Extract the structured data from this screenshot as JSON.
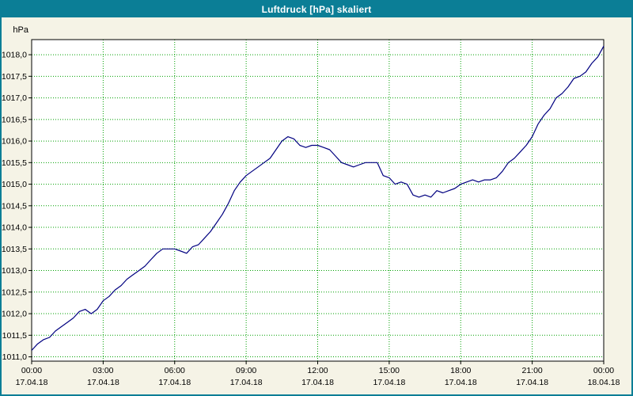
{
  "window": {
    "title": "Luftdruck [hPa] skaliert"
  },
  "colors": {
    "accent_teal": "#0b7e96",
    "background_cream": "#f5f3e6",
    "plot_background": "#ffffff",
    "grid_green": "#00a000",
    "line_navy": "#000080",
    "axis_black": "#000000"
  },
  "chart_data": {
    "type": "line",
    "title": "Luftdruck [hPa] skaliert",
    "ylabel": "hPa",
    "xlabel": "",
    "grid": true,
    "legend": "none",
    "ylim": [
      1010.9,
      1018.35
    ],
    "yticks_from": 1011.0,
    "yticks_to": 1018.0,
    "ytick_step": 0.5,
    "ytick_decimal_separator": ",",
    "xlim": [
      0,
      24
    ],
    "xticks": [
      {
        "h": 0,
        "time": "00:00",
        "date": "17.04.18"
      },
      {
        "h": 3,
        "time": "03:00",
        "date": "17.04.18"
      },
      {
        "h": 6,
        "time": "06:00",
        "date": "17.04.18"
      },
      {
        "h": 9,
        "time": "09:00",
        "date": "17.04.18"
      },
      {
        "h": 12,
        "time": "12:00",
        "date": "17.04.18"
      },
      {
        "h": 15,
        "time": "15:00",
        "date": "17.04.18"
      },
      {
        "h": 18,
        "time": "18:00",
        "date": "17.04.18"
      },
      {
        "h": 21,
        "time": "21:00",
        "date": "17.04.18"
      },
      {
        "h": 24,
        "time": "00:00",
        "date": "18.04.18"
      }
    ],
    "x": [
      0,
      0.25,
      0.5,
      0.75,
      1,
      1.25,
      1.5,
      1.75,
      2,
      2.25,
      2.5,
      2.75,
      3,
      3.25,
      3.5,
      3.75,
      4,
      4.25,
      4.5,
      4.75,
      5,
      5.25,
      5.5,
      5.75,
      6,
      6.25,
      6.5,
      6.75,
      7,
      7.25,
      7.5,
      7.75,
      8,
      8.25,
      8.5,
      8.75,
      9,
      9.25,
      9.5,
      9.75,
      10,
      10.25,
      10.5,
      10.75,
      11,
      11.25,
      11.5,
      11.75,
      12,
      12.25,
      12.5,
      12.75,
      13,
      13.25,
      13.5,
      13.75,
      14,
      14.25,
      14.5,
      14.75,
      15,
      15.25,
      15.5,
      15.75,
      16,
      16.25,
      16.5,
      16.75,
      17,
      17.25,
      17.5,
      17.75,
      18,
      18.25,
      18.5,
      18.75,
      19,
      19.25,
      19.5,
      19.75,
      20,
      20.25,
      20.5,
      20.75,
      21,
      21.25,
      21.5,
      21.75,
      22,
      22.25,
      22.5,
      22.75,
      23,
      23.25,
      23.5,
      23.75,
      24
    ],
    "y": [
      1011.15,
      1011.3,
      1011.4,
      1011.45,
      1011.6,
      1011.7,
      1011.8,
      1011.9,
      1012.05,
      1012.1,
      1012.0,
      1012.1,
      1012.3,
      1012.4,
      1012.55,
      1012.65,
      1012.8,
      1012.9,
      1013.0,
      1013.1,
      1013.25,
      1013.4,
      1013.5,
      1013.5,
      1013.5,
      1013.45,
      1013.4,
      1013.55,
      1013.6,
      1013.75,
      1013.9,
      1014.1,
      1014.3,
      1014.55,
      1014.85,
      1015.05,
      1015.2,
      1015.3,
      1015.4,
      1015.5,
      1015.6,
      1015.8,
      1016.0,
      1016.1,
      1016.05,
      1015.9,
      1015.85,
      1015.9,
      1015.9,
      1015.85,
      1015.8,
      1015.65,
      1015.5,
      1015.45,
      1015.4,
      1015.45,
      1015.5,
      1015.5,
      1015.5,
      1015.2,
      1015.15,
      1015.0,
      1015.05,
      1015.0,
      1014.75,
      1014.7,
      1014.75,
      1014.7,
      1014.85,
      1014.8,
      1014.85,
      1014.9,
      1015.0,
      1015.05,
      1015.1,
      1015.05,
      1015.1,
      1015.1,
      1015.15,
      1015.3,
      1015.5,
      1015.6,
      1015.75,
      1015.9,
      1016.1,
      1016.4,
      1016.6,
      1016.75,
      1017.0,
      1017.1,
      1017.25,
      1017.45,
      1017.5,
      1017.6,
      1017.8,
      1017.95,
      1018.2
    ],
    "line_color": "#000080",
    "grid_color": "#00a000"
  }
}
